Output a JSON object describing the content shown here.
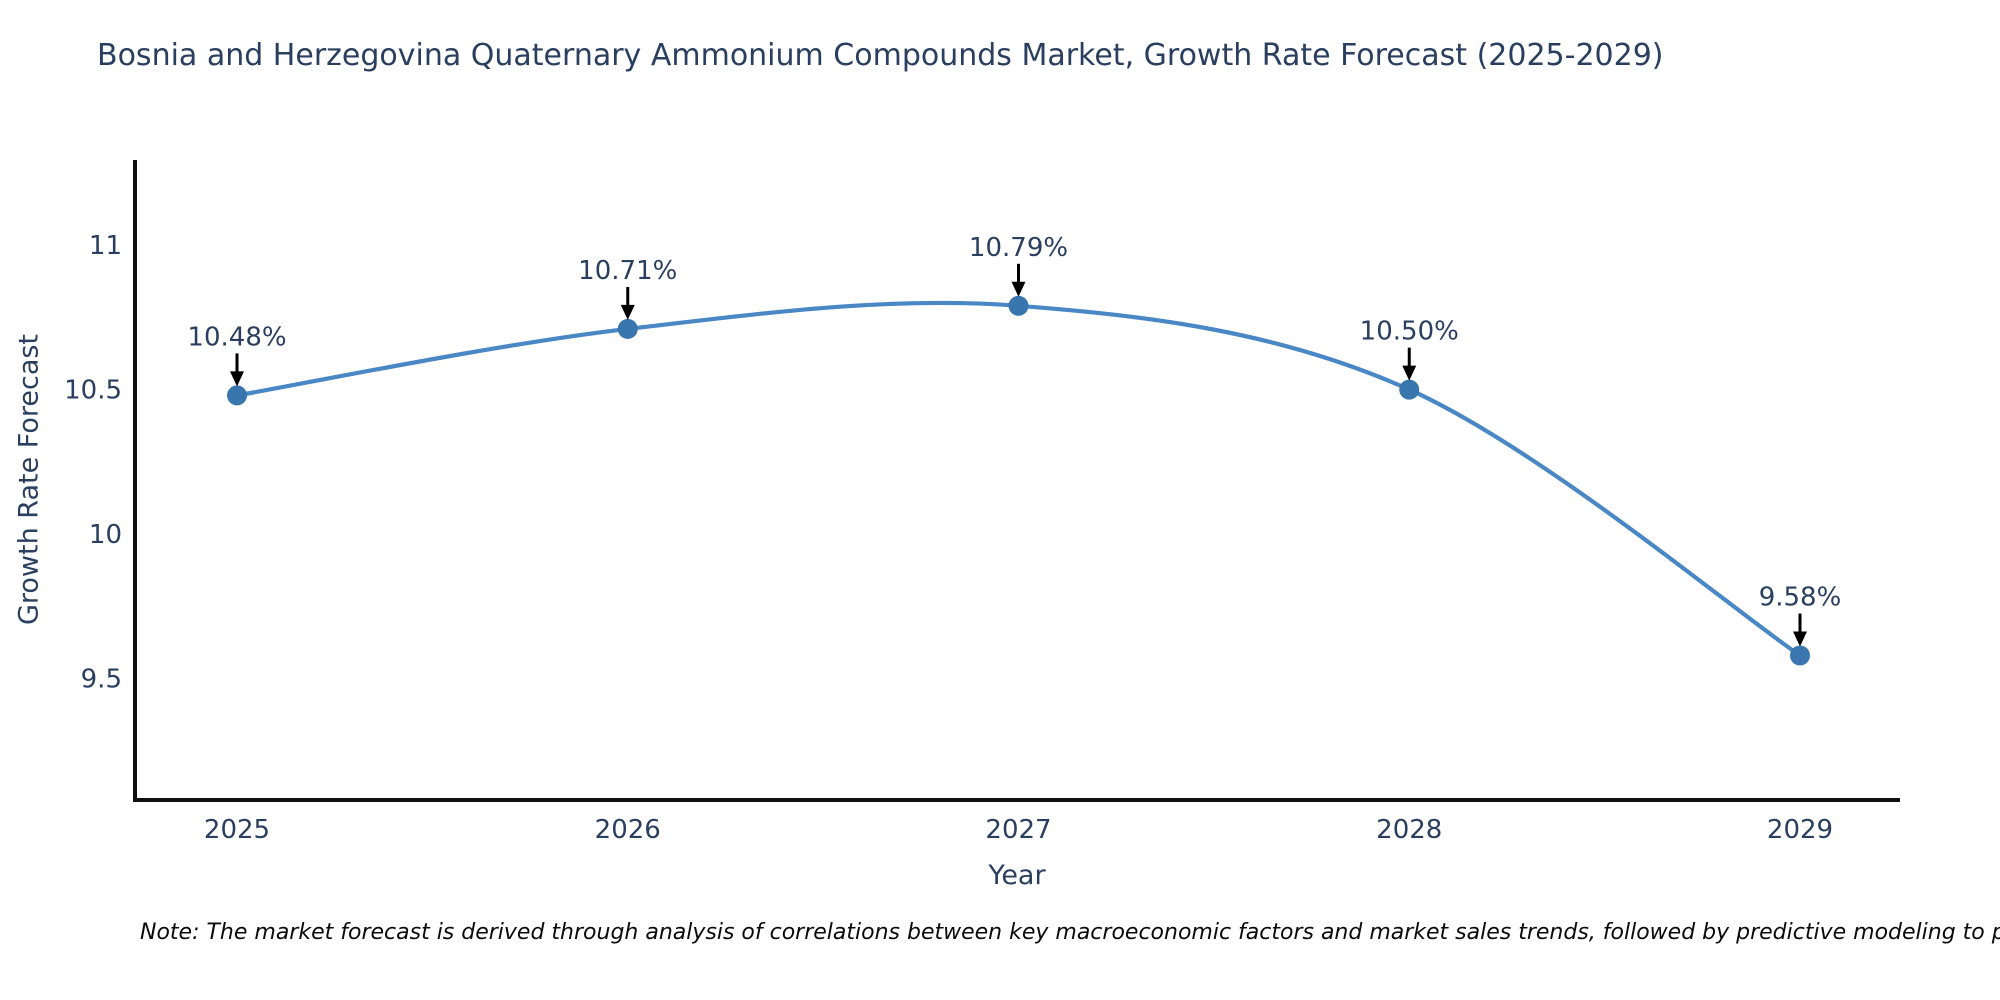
{
  "title": "Bosnia and Herzegovina Quaternary Ammonium Compounds Market, Growth Rate Forecast (2025-2029)",
  "note": "Note: The market forecast is derived through analysis of correlations between key macroeconomic factors and market sales trends, followed by predictive modeling to project future sal",
  "chart_data": {
    "type": "line",
    "title": "Bosnia and Herzegovina Quaternary Ammonium Compounds Market, Growth Rate Forecast (2025-2029)",
    "xlabel": "Year",
    "ylabel": "Growth Rate Forecast",
    "categories": [
      "2025",
      "2026",
      "2027",
      "2028",
      "2029"
    ],
    "values": [
      10.48,
      10.71,
      10.79,
      10.5,
      9.58
    ],
    "point_labels": [
      "10.48%",
      "10.71%",
      "10.79%",
      "10.50%",
      "9.58%"
    ],
    "y_ticks": [
      9.5,
      10,
      10.5,
      11
    ],
    "y_tick_labels": [
      "9.5",
      "10",
      "10.5",
      "11"
    ],
    "ylim": [
      9.08,
      11.29
    ],
    "grid": false,
    "legend": "none",
    "curve": "spline",
    "line_color": "#4a87c5",
    "marker_color": "#3a76ae",
    "annotation_arrow_color": "#000000",
    "axis_line_color": "#101010",
    "text_color": "#2a3f5f"
  }
}
